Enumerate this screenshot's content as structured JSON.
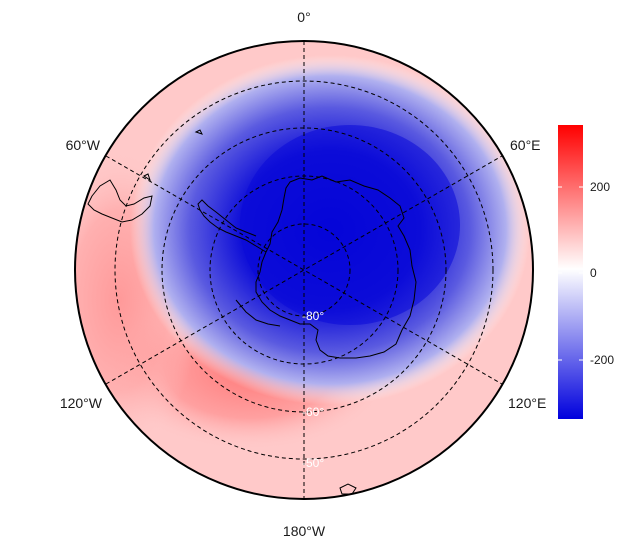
{
  "map": {
    "projection": "south-polar-stereographic",
    "longitude_labels": [
      "0°",
      "60°E",
      "120°E",
      "180°W",
      "120°W",
      "60°W"
    ],
    "latitude_labels": [
      "-80°",
      "-60°",
      "-50°"
    ],
    "field_description_colors": {
      "negative": "#0000dd",
      "zero": "#ffffff",
      "positive": "#ff0000"
    }
  },
  "colorbar": {
    "ticks": [
      "200",
      "0",
      "-200"
    ],
    "range": [
      -330,
      340
    ]
  }
}
